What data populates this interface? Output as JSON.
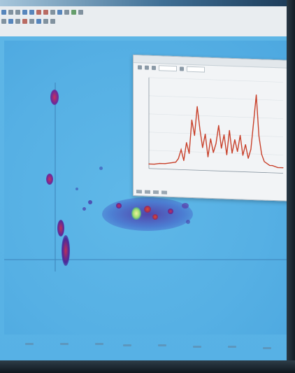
{
  "app": {
    "accent": "#57b1e5",
    "toolbar_icons": [
      "new-icon",
      "open-icon",
      "save-icon",
      "zoom-in-icon",
      "zoom-out-icon",
      "pan-icon",
      "select-icon",
      "peak-icon",
      "export-icon",
      "print-icon",
      "settings-icon",
      "help-icon"
    ]
  },
  "chromatogram_2d": {
    "heat_colors": [
      "#2a3fb0",
      "#6a2a9a",
      "#c0305a",
      "#e04b2a",
      "#f0d040"
    ]
  },
  "spectrum_window": {
    "trace_color": "#c8402a",
    "chart_data": {
      "type": "line",
      "x": [
        0,
        4,
        8,
        12,
        16,
        20,
        22,
        24,
        26,
        28,
        30,
        32,
        34,
        36,
        38,
        40,
        42,
        44,
        46,
        48,
        50,
        52,
        54,
        56,
        58,
        60,
        62,
        64,
        66,
        68,
        70,
        72,
        74,
        76,
        78,
        80,
        82,
        84,
        86,
        88,
        90,
        92,
        94,
        96,
        100
      ],
      "series": [
        {
          "values": [
            5,
            5,
            6,
            6,
            7,
            8,
            12,
            22,
            10,
            30,
            18,
            55,
            38,
            70,
            45,
            25,
            40,
            15,
            35,
            20,
            30,
            50,
            25,
            40,
            18,
            45,
            20,
            35,
            22,
            40,
            18,
            30,
            15,
            25,
            55,
            85,
            40,
            20,
            12,
            10,
            8,
            8,
            7,
            6,
            6
          ]
        }
      ],
      "ylim": [
        0,
        100
      ]
    }
  }
}
